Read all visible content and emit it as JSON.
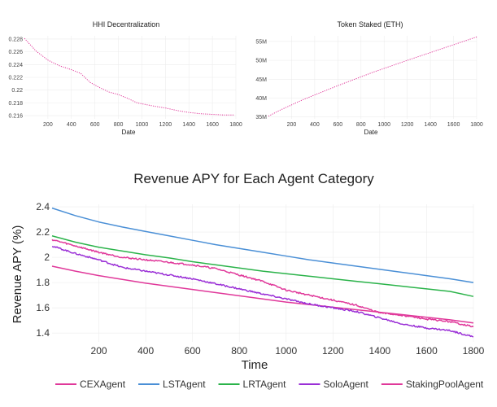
{
  "chart_data": [
    {
      "type": "line",
      "title": "HHI Decentralization",
      "xlabel": "Date",
      "ylabel": "",
      "xlim": [
        0,
        1800
      ],
      "ylim": [
        0.2155,
        0.2285
      ],
      "x_ticks": [
        200,
        400,
        600,
        800,
        1000,
        1200,
        1400,
        1600,
        1800
      ],
      "y_ticks": [
        0.216,
        0.218,
        0.22,
        0.222,
        0.224,
        0.226,
        0.228
      ],
      "y_tick_labels": [
        "0.216",
        "0.218",
        "0.22",
        "0.222",
        "0.224",
        "0.226",
        "0.228"
      ],
      "grid": true,
      "line_style": "dotted",
      "color": "#e0389a",
      "series": [
        {
          "x": [
            0,
            100,
            200,
            300,
            400,
            480,
            560,
            640,
            720,
            800,
            880,
            960,
            1100,
            1200,
            1300,
            1400,
            1500,
            1600,
            1700,
            1780
          ],
          "values": [
            0.2281,
            0.2261,
            0.2247,
            0.2238,
            0.2232,
            0.2226,
            0.2212,
            0.2204,
            0.2197,
            0.2193,
            0.2187,
            0.218,
            0.2175,
            0.2172,
            0.2168,
            0.2165,
            0.2163,
            0.2162,
            0.2161,
            0.2161
          ]
        }
      ]
    },
    {
      "type": "line",
      "title": "Token Staked (ETH)",
      "xlabel": "Date",
      "ylabel": "",
      "xlim": [
        0,
        1800
      ],
      "ylim": [
        34500000,
        56500000
      ],
      "x_ticks": [
        200,
        400,
        600,
        800,
        1000,
        1200,
        1400,
        1600,
        1800
      ],
      "y_ticks": [
        35000000,
        40000000,
        45000000,
        50000000,
        55000000
      ],
      "y_tick_labels": [
        "35M",
        "40M",
        "45M",
        "50M",
        "55M"
      ],
      "grid": true,
      "line_style": "dotted",
      "color": "#e0389a",
      "series": [
        {
          "x": [
            0,
            100,
            300,
            600,
            900,
            1200,
            1500,
            1800
          ],
          "values": [
            35200000,
            36800000,
            39600000,
            43300000,
            46800000,
            50000000,
            53100000,
            56200000
          ]
        }
      ]
    },
    {
      "type": "line",
      "title": "Revenue APY for Each Agent Category",
      "xlabel": "Time",
      "ylabel": "Revenue APY (%)",
      "xlim": [
        0,
        1800
      ],
      "ylim": [
        1.33,
        2.42
      ],
      "x_ticks": [
        200,
        400,
        600,
        800,
        1000,
        1200,
        1400,
        1600,
        1800
      ],
      "y_ticks": [
        1.4,
        1.6,
        1.8,
        2.0,
        2.2,
        2.4
      ],
      "y_tick_labels": [
        "1.4",
        "1.6",
        "1.8",
        "2",
        "2.2",
        "2.4"
      ],
      "grid": true,
      "legend_position": "bottom",
      "x": [
        0,
        100,
        200,
        300,
        400,
        500,
        600,
        700,
        800,
        900,
        1000,
        1100,
        1200,
        1300,
        1400,
        1500,
        1600,
        1700,
        1800
      ],
      "series": [
        {
          "name": "CEXAgent",
          "color": "#e0389a",
          "noisy": false,
          "values": [
            1.93,
            1.89,
            1.855,
            1.825,
            1.795,
            1.77,
            1.745,
            1.72,
            1.695,
            1.67,
            1.645,
            1.625,
            1.605,
            1.585,
            1.565,
            1.545,
            1.525,
            1.505,
            1.48
          ]
        },
        {
          "name": "LSTAgent",
          "color": "#4a8fd6",
          "noisy": false,
          "values": [
            2.39,
            2.33,
            2.28,
            2.24,
            2.205,
            2.17,
            2.135,
            2.1,
            2.07,
            2.04,
            2.01,
            1.98,
            1.955,
            1.93,
            1.905,
            1.88,
            1.855,
            1.83,
            1.8
          ]
        },
        {
          "name": "LRTAgent",
          "color": "#2bb34a",
          "noisy": false,
          "values": [
            2.17,
            2.12,
            2.08,
            2.05,
            2.02,
            1.995,
            1.965,
            1.94,
            1.915,
            1.89,
            1.87,
            1.85,
            1.83,
            1.81,
            1.79,
            1.77,
            1.75,
            1.73,
            1.69
          ]
        },
        {
          "name": "SoloAgent",
          "color": "#9a2fd6",
          "noisy": true,
          "values": [
            2.09,
            2.03,
            1.98,
            1.92,
            1.89,
            1.86,
            1.83,
            1.79,
            1.75,
            1.71,
            1.67,
            1.63,
            1.6,
            1.57,
            1.52,
            1.47,
            1.44,
            1.42,
            1.37
          ]
        },
        {
          "name": "StakingPoolAgent",
          "color": "#e0389a",
          "noisy": true,
          "values": [
            2.14,
            2.09,
            2.04,
            2.0,
            1.98,
            1.96,
            1.94,
            1.91,
            1.86,
            1.81,
            1.74,
            1.7,
            1.66,
            1.62,
            1.56,
            1.54,
            1.51,
            1.49,
            1.45
          ]
        }
      ]
    }
  ]
}
